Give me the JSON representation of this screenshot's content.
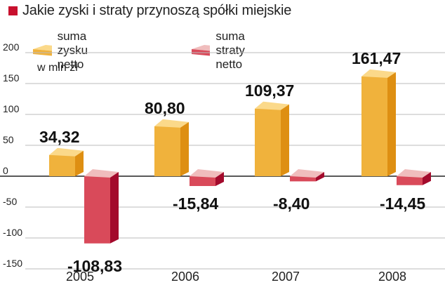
{
  "chart_data": {
    "type": "bar",
    "title": "Jakie zyski i straty przynoszą spółki miejskie",
    "unit_label": "w mln zł",
    "categories": [
      "2005",
      "2006",
      "2007",
      "2008"
    ],
    "series": [
      {
        "name": "suma zysku netto",
        "values": [
          34.32,
          80.8,
          109.37,
          161.47
        ],
        "labels": [
          "34,32",
          "80,80",
          "109,37",
          "161,47"
        ],
        "color": "#f0b23c"
      },
      {
        "name": "suma straty netto",
        "values": [
          -108.83,
          -15.84,
          -8.4,
          -14.45
        ],
        "labels": [
          "-108,83",
          "-15,84",
          "-8,40",
          "-14,45"
        ],
        "color": "#d0103a"
      }
    ],
    "y_ticks": [
      "200",
      "150",
      "100",
      "50",
      "0",
      "-50",
      "-100",
      "-150"
    ],
    "ylim": [
      -150,
      200
    ],
    "grid": "horizontal",
    "legend": "top-left",
    "title_marker_color": "#c8102e"
  }
}
